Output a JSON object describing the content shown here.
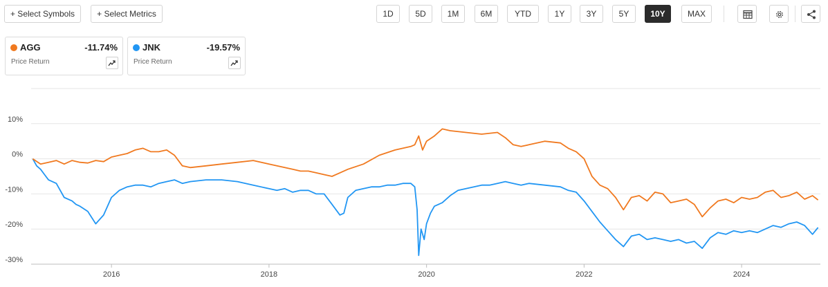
{
  "toolbar": {
    "select_symbols": "+ Select Symbols",
    "select_metrics": "+ Select Metrics",
    "ranges": [
      "1D",
      "5D",
      "1M",
      "6M",
      "YTD",
      "1Y",
      "3Y",
      "5Y",
      "10Y",
      "MAX"
    ],
    "active_range": "10Y",
    "icons": [
      "table-icon",
      "settings-icon",
      "share-icon"
    ]
  },
  "legend": [
    {
      "symbol": "AGG",
      "value": "-11.74%",
      "metric": "Price Return",
      "color": "#f0791f"
    },
    {
      "symbol": "JNK",
      "value": "-19.57%",
      "metric": "Price Return",
      "color": "#2196f3"
    }
  ],
  "chart_data": {
    "type": "line",
    "ylabel_ticks": [
      "10%",
      "0%",
      "-10%",
      "-20%",
      "-30%"
    ],
    "yticks": [
      10,
      0,
      -10,
      -20,
      -30
    ],
    "ylim": [
      -30,
      20
    ],
    "xlim": [
      2014.98,
      2025.0
    ],
    "xticks": [
      2016,
      2018,
      2020,
      2022,
      2024
    ],
    "xtick_labels": [
      "2016",
      "2018",
      "2020",
      "2022",
      "2024"
    ],
    "grid": true,
    "series": [
      {
        "name": "AGG",
        "color": "#f0791f",
        "x": [
          2015.0,
          2015.1,
          2015.2,
          2015.3,
          2015.4,
          2015.5,
          2015.6,
          2015.7,
          2015.8,
          2015.9,
          2016.0,
          2016.1,
          2016.2,
          2016.3,
          2016.4,
          2016.5,
          2016.6,
          2016.7,
          2016.8,
          2016.9,
          2017.0,
          2017.2,
          2017.4,
          2017.6,
          2017.8,
          2018.0,
          2018.1,
          2018.2,
          2018.3,
          2018.4,
          2018.5,
          2018.6,
          2018.7,
          2018.8,
          2018.9,
          2019.0,
          2019.2,
          2019.4,
          2019.6,
          2019.8,
          2019.85,
          2019.9,
          2019.95,
          2020.0,
          2020.1,
          2020.2,
          2020.3,
          2020.5,
          2020.7,
          2020.9,
          2021.0,
          2021.1,
          2021.2,
          2021.3,
          2021.5,
          2021.7,
          2021.8,
          2021.9,
          2022.0,
          2022.1,
          2022.2,
          2022.3,
          2022.4,
          2022.5,
          2022.6,
          2022.7,
          2022.8,
          2022.9,
          2023.0,
          2023.1,
          2023.2,
          2023.3,
          2023.4,
          2023.5,
          2023.6,
          2023.7,
          2023.8,
          2023.9,
          2024.0,
          2024.1,
          2024.2,
          2024.3,
          2024.4,
          2024.5,
          2024.6,
          2024.7,
          2024.8,
          2024.9,
          2024.97
        ],
        "y": [
          0.0,
          -1.5,
          -1.0,
          -0.5,
          -1.5,
          -0.5,
          -1.0,
          -1.2,
          -0.5,
          -0.8,
          0.5,
          1.0,
          1.5,
          2.5,
          3.0,
          2.0,
          2.0,
          2.5,
          1.0,
          -2.0,
          -2.5,
          -2.0,
          -1.5,
          -1.0,
          -0.5,
          -1.5,
          -2.0,
          -2.5,
          -3.0,
          -3.5,
          -3.5,
          -4.0,
          -4.5,
          -5.0,
          -4.0,
          -3.0,
          -1.5,
          1.0,
          2.5,
          3.5,
          4.0,
          6.5,
          2.5,
          5.0,
          6.5,
          8.5,
          8.0,
          7.5,
          7.0,
          7.5,
          6.0,
          4.0,
          3.5,
          4.0,
          5.0,
          4.5,
          3.0,
          2.0,
          0.0,
          -5.0,
          -7.5,
          -8.5,
          -11.0,
          -14.5,
          -11.0,
          -10.5,
          -12.0,
          -9.5,
          -10.0,
          -12.5,
          -12.0,
          -11.5,
          -13.0,
          -16.5,
          -14.0,
          -12.0,
          -11.5,
          -12.5,
          -11.0,
          -11.5,
          -11.0,
          -9.5,
          -9.0,
          -11.0,
          -10.5,
          -9.5,
          -11.5,
          -10.5,
          -11.74
        ]
      },
      {
        "name": "JNK",
        "color": "#2196f3",
        "x": [
          2015.0,
          2015.05,
          2015.1,
          2015.15,
          2015.2,
          2015.3,
          2015.4,
          2015.5,
          2015.55,
          2015.6,
          2015.7,
          2015.8,
          2015.9,
          2016.0,
          2016.1,
          2016.2,
          2016.3,
          2016.4,
          2016.5,
          2016.6,
          2016.7,
          2016.8,
          2016.9,
          2017.0,
          2017.2,
          2017.4,
          2017.6,
          2017.8,
          2018.0,
          2018.1,
          2018.2,
          2018.3,
          2018.4,
          2018.5,
          2018.6,
          2018.7,
          2018.8,
          2018.9,
          2018.95,
          2019.0,
          2019.1,
          2019.2,
          2019.3,
          2019.4,
          2019.5,
          2019.6,
          2019.7,
          2019.8,
          2019.85,
          2019.88,
          2019.9,
          2019.93,
          2019.97,
          2020.0,
          2020.05,
          2020.1,
          2020.2,
          2020.3,
          2020.4,
          2020.5,
          2020.6,
          2020.7,
          2020.8,
          2020.9,
          2021.0,
          2021.1,
          2021.2,
          2021.3,
          2021.5,
          2021.7,
          2021.8,
          2021.9,
          2022.0,
          2022.1,
          2022.2,
          2022.3,
          2022.4,
          2022.5,
          2022.6,
          2022.7,
          2022.8,
          2022.9,
          2023.0,
          2023.1,
          2023.2,
          2023.3,
          2023.4,
          2023.5,
          2023.6,
          2023.7,
          2023.8,
          2023.9,
          2024.0,
          2024.1,
          2024.2,
          2024.3,
          2024.4,
          2024.5,
          2024.6,
          2024.7,
          2024.8,
          2024.9,
          2024.97
        ],
        "y": [
          0.0,
          -2.0,
          -3.0,
          -4.5,
          -6.0,
          -7.0,
          -11.0,
          -12.0,
          -13.0,
          -13.5,
          -15.0,
          -18.5,
          -16.0,
          -11.0,
          -9.0,
          -8.0,
          -7.5,
          -7.5,
          -8.0,
          -7.0,
          -6.5,
          -6.0,
          -7.0,
          -6.5,
          -6.0,
          -6.0,
          -6.5,
          -7.5,
          -8.5,
          -9.0,
          -8.5,
          -9.5,
          -9.0,
          -9.0,
          -10.0,
          -10.0,
          -13.0,
          -16.0,
          -15.5,
          -11.0,
          -9.0,
          -8.5,
          -8.0,
          -8.0,
          -7.5,
          -7.5,
          -7.0,
          -7.0,
          -8.0,
          -14.5,
          -27.5,
          -20.0,
          -23.0,
          -18.5,
          -15.5,
          -13.5,
          -12.5,
          -10.5,
          -9.0,
          -8.5,
          -8.0,
          -7.5,
          -7.5,
          -7.0,
          -6.5,
          -7.0,
          -7.5,
          -7.0,
          -7.5,
          -8.0,
          -9.0,
          -9.5,
          -12.0,
          -15.0,
          -18.0,
          -20.5,
          -23.0,
          -25.0,
          -22.0,
          -21.5,
          -23.0,
          -22.5,
          -23.0,
          -23.5,
          -23.0,
          -24.0,
          -23.5,
          -25.5,
          -22.5,
          -21.0,
          -21.5,
          -20.5,
          -21.0,
          -20.5,
          -21.0,
          -20.0,
          -19.0,
          -19.5,
          -18.5,
          -18.0,
          -19.0,
          -21.5,
          -19.57
        ]
      }
    ]
  }
}
